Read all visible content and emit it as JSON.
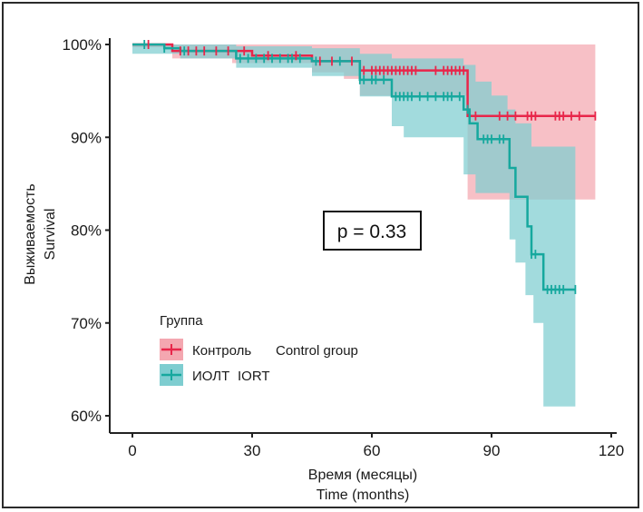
{
  "chart_data": {
    "type": "line",
    "subtype": "kaplan-meier",
    "title": "",
    "xlabel": "Время (месяцы)",
    "xlabel_en": "Time (months)",
    "ylabel": "Выживаемость",
    "ylabel_en": "Survival",
    "xlim": [
      0,
      120
    ],
    "ylim": [
      0.6,
      1.0
    ],
    "x_ticks": [
      0,
      30,
      60,
      90,
      120
    ],
    "x_tick_labels": [
      "0",
      "30",
      "60",
      "90",
      "120"
    ],
    "y_ticks": [
      0.6,
      0.7,
      0.8,
      0.9,
      1.0
    ],
    "y_tick_labels": [
      "60%",
      "70%",
      "80%",
      "90%",
      "100%"
    ],
    "grid": false,
    "annotation": "p = 0.33",
    "legend": {
      "title": "Группа",
      "placement": "bottom-left",
      "entries": [
        {
          "label": "Контроль",
          "label_en": "Control group"
        },
        {
          "label": "ИОЛТ",
          "label_en": "IORT"
        }
      ]
    },
    "series": [
      {
        "name": "Контроль",
        "color": "#e8264a",
        "band_color": "#f4a7b0",
        "steps": [
          [
            0,
            1.0
          ],
          [
            10,
            0.993
          ],
          [
            30,
            0.988
          ],
          [
            45,
            0.982
          ],
          [
            57,
            0.972
          ],
          [
            84,
            0.923
          ],
          [
            116,
            0.923
          ]
        ],
        "ci_upper": [
          [
            0,
            1.0
          ],
          [
            84,
            1.0
          ],
          [
            116,
            1.0
          ]
        ],
        "ci_lower": [
          [
            0,
            0.997
          ],
          [
            10,
            0.985
          ],
          [
            25,
            0.98
          ],
          [
            45,
            0.97
          ],
          [
            53,
            0.963
          ],
          [
            57,
            0.945
          ],
          [
            84,
            0.833
          ],
          [
            116,
            0.833
          ]
        ],
        "censor_times": [
          4,
          12,
          14,
          16,
          18,
          21,
          24,
          28,
          34,
          41,
          47,
          50,
          55,
          58,
          60,
          61,
          62,
          63,
          64,
          65,
          66,
          67,
          68,
          69,
          70,
          71,
          76,
          78,
          79,
          80,
          81,
          82,
          83,
          86,
          92,
          94,
          96,
          99,
          100,
          101,
          106,
          107,
          108,
          110,
          112,
          116
        ]
      },
      {
        "name": "ИОЛТ",
        "color": "#16a89e",
        "band_color": "#7ecdd0",
        "steps": [
          [
            0,
            1.0
          ],
          [
            8,
            0.996
          ],
          [
            12,
            0.993
          ],
          [
            26,
            0.985
          ],
          [
            45,
            0.982
          ],
          [
            57,
            0.962
          ],
          [
            65,
            0.944
          ],
          [
            83,
            0.93
          ],
          [
            84.5,
            0.915
          ],
          [
            86.5,
            0.898
          ],
          [
            94.5,
            0.867
          ],
          [
            96,
            0.836
          ],
          [
            99,
            0.804
          ],
          [
            100,
            0.774
          ],
          [
            103,
            0.736
          ],
          [
            111,
            0.736
          ]
        ],
        "ci_upper": [
          [
            0,
            1.0
          ],
          [
            26,
            0.998
          ],
          [
            45,
            0.996
          ],
          [
            57,
            0.99
          ],
          [
            65,
            0.985
          ],
          [
            83,
            0.978
          ],
          [
            86,
            0.96
          ],
          [
            90,
            0.945
          ],
          [
            94,
            0.93
          ],
          [
            96,
            0.915
          ],
          [
            100,
            0.89
          ],
          [
            111,
            0.89
          ]
        ],
        "ci_lower": [
          [
            0,
            0.99
          ],
          [
            12,
            0.985
          ],
          [
            26,
            0.975
          ],
          [
            45,
            0.966
          ],
          [
            57,
            0.944
          ],
          [
            65,
            0.912
          ],
          [
            68,
            0.9
          ],
          [
            83,
            0.86
          ],
          [
            86,
            0.84
          ],
          [
            94.5,
            0.79
          ],
          [
            96,
            0.765
          ],
          [
            98.5,
            0.73
          ],
          [
            100.5,
            0.7
          ],
          [
            103,
            0.61
          ],
          [
            111,
            0.61
          ]
        ],
        "censor_times": [
          3,
          8,
          13,
          27,
          29,
          31,
          33,
          35,
          37,
          39,
          40,
          42,
          46,
          52,
          57,
          58,
          60,
          61,
          63,
          66,
          67,
          68,
          69,
          70,
          72,
          74,
          76,
          78,
          79,
          80,
          82,
          84,
          88,
          89,
          90,
          92,
          93,
          100,
          101,
          104,
          105,
          106,
          107,
          108,
          111
        ]
      }
    ]
  }
}
